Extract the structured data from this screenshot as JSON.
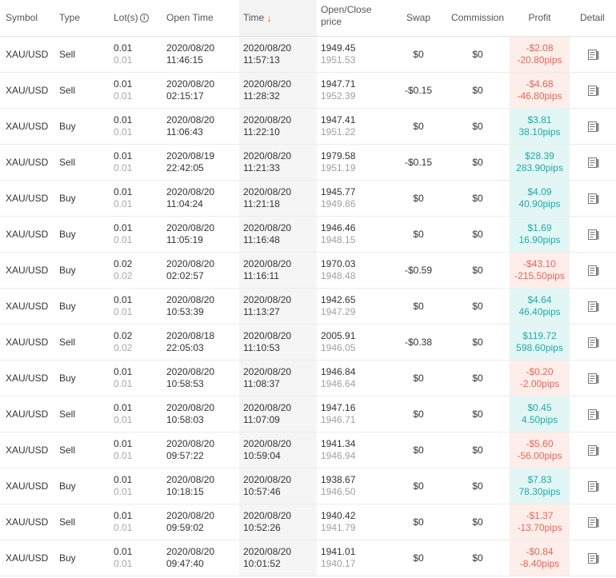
{
  "header": {
    "symbol": "Symbol",
    "type": "Type",
    "lots": "Lot(s)",
    "open_time": "Open Time",
    "time": "Time",
    "price_line1": "Open/Close",
    "price_line2": "price",
    "swap": "Swap",
    "commission": "Commission",
    "profit": "Profit",
    "detail": "Detail"
  },
  "colors": {
    "profit_negative": "#e8685a",
    "profit_positive": "#22aaa4",
    "sort_arrow": "#f07a2c"
  },
  "icons": {
    "lots_info": "info-circle-icon",
    "sort": "arrow-down-icon",
    "detail": "document-icon"
  },
  "rows": [
    {
      "symbol": "XAU/USD",
      "type": "Sell",
      "lots_open": "0.01",
      "lots_close": "0.01",
      "open_date": "2020/08/20",
      "open_clock": "11:46:15",
      "close_date": "2020/08/20",
      "close_clock": "11:57:13",
      "open_price": "1949.45",
      "close_price": "1951.53",
      "swap": "$0",
      "commission": "$0",
      "profit": "-$2.08",
      "pips": "-20.80pips",
      "profit_sign": "neg"
    },
    {
      "symbol": "XAU/USD",
      "type": "Sell",
      "lots_open": "0.01",
      "lots_close": "0.01",
      "open_date": "2020/08/20",
      "open_clock": "02:15:17",
      "close_date": "2020/08/20",
      "close_clock": "11:28:32",
      "open_price": "1947.71",
      "close_price": "1952.39",
      "swap": "-$0.15",
      "commission": "$0",
      "profit": "-$4.68",
      "pips": "-46.80pips",
      "profit_sign": "neg"
    },
    {
      "symbol": "XAU/USD",
      "type": "Buy",
      "lots_open": "0.01",
      "lots_close": "0.01",
      "open_date": "2020/08/20",
      "open_clock": "11:06:43",
      "close_date": "2020/08/20",
      "close_clock": "11:22:10",
      "open_price": "1947.41",
      "close_price": "1951.22",
      "swap": "$0",
      "commission": "$0",
      "profit": "$3.81",
      "pips": "38.10pips",
      "profit_sign": "pos"
    },
    {
      "symbol": "XAU/USD",
      "type": "Sell",
      "lots_open": "0.01",
      "lots_close": "0.01",
      "open_date": "2020/08/19",
      "open_clock": "22:42:05",
      "close_date": "2020/08/20",
      "close_clock": "11:21:33",
      "open_price": "1979.58",
      "close_price": "1951.19",
      "swap": "-$0.15",
      "commission": "$0",
      "profit": "$28.39",
      "pips": "283.90pips",
      "profit_sign": "pos"
    },
    {
      "symbol": "XAU/USD",
      "type": "Buy",
      "lots_open": "0.01",
      "lots_close": "0.01",
      "open_date": "2020/08/20",
      "open_clock": "11:04:24",
      "close_date": "2020/08/20",
      "close_clock": "11:21:18",
      "open_price": "1945.77",
      "close_price": "1949.86",
      "swap": "$0",
      "commission": "$0",
      "profit": "$4.09",
      "pips": "40.90pips",
      "profit_sign": "pos"
    },
    {
      "symbol": "XAU/USD",
      "type": "Buy",
      "lots_open": "0.01",
      "lots_close": "0.01",
      "open_date": "2020/08/20",
      "open_clock": "11:05:19",
      "close_date": "2020/08/20",
      "close_clock": "11:16:48",
      "open_price": "1946.46",
      "close_price": "1948.15",
      "swap": "$0",
      "commission": "$0",
      "profit": "$1.69",
      "pips": "16.90pips",
      "profit_sign": "pos"
    },
    {
      "symbol": "XAU/USD",
      "type": "Buy",
      "lots_open": "0.02",
      "lots_close": "0.02",
      "open_date": "2020/08/20",
      "open_clock": "02:02:57",
      "close_date": "2020/08/20",
      "close_clock": "11:16:11",
      "open_price": "1970.03",
      "close_price": "1948.48",
      "swap": "-$0.59",
      "commission": "$0",
      "profit": "-$43.10",
      "pips": "-215.50pips",
      "profit_sign": "neg"
    },
    {
      "symbol": "XAU/USD",
      "type": "Buy",
      "lots_open": "0.01",
      "lots_close": "0.01",
      "open_date": "2020/08/20",
      "open_clock": "10:53:39",
      "close_date": "2020/08/20",
      "close_clock": "11:13:27",
      "open_price": "1942.65",
      "close_price": "1947.29",
      "swap": "$0",
      "commission": "$0",
      "profit": "$4.64",
      "pips": "46.40pips",
      "profit_sign": "pos"
    },
    {
      "symbol": "XAU/USD",
      "type": "Sell",
      "lots_open": "0.02",
      "lots_close": "0.02",
      "open_date": "2020/08/18",
      "open_clock": "22:05:03",
      "close_date": "2020/08/20",
      "close_clock": "11:10:53",
      "open_price": "2005.91",
      "close_price": "1946.05",
      "swap": "-$0.38",
      "commission": "$0",
      "profit": "$119.72",
      "pips": "598.60pips",
      "profit_sign": "pos"
    },
    {
      "symbol": "XAU/USD",
      "type": "Buy",
      "lots_open": "0.01",
      "lots_close": "0.01",
      "open_date": "2020/08/20",
      "open_clock": "10:58:53",
      "close_date": "2020/08/20",
      "close_clock": "11:08:37",
      "open_price": "1946.84",
      "close_price": "1946.64",
      "swap": "$0",
      "commission": "$0",
      "profit": "-$0.20",
      "pips": "-2.00pips",
      "profit_sign": "neg"
    },
    {
      "symbol": "XAU/USD",
      "type": "Sell",
      "lots_open": "0.01",
      "lots_close": "0.01",
      "open_date": "2020/08/20",
      "open_clock": "10:58:03",
      "close_date": "2020/08/20",
      "close_clock": "11:07:09",
      "open_price": "1947.16",
      "close_price": "1946.71",
      "swap": "$0",
      "commission": "$0",
      "profit": "$0.45",
      "pips": "4.50pips",
      "profit_sign": "pos"
    },
    {
      "symbol": "XAU/USD",
      "type": "Sell",
      "lots_open": "0.01",
      "lots_close": "0.01",
      "open_date": "2020/08/20",
      "open_clock": "09:57:22",
      "close_date": "2020/08/20",
      "close_clock": "10:59:04",
      "open_price": "1941.34",
      "close_price": "1946.94",
      "swap": "$0",
      "commission": "$0",
      "profit": "-$5.60",
      "pips": "-56.00pips",
      "profit_sign": "neg"
    },
    {
      "symbol": "XAU/USD",
      "type": "Buy",
      "lots_open": "0.01",
      "lots_close": "0.01",
      "open_date": "2020/08/20",
      "open_clock": "10:18:15",
      "close_date": "2020/08/20",
      "close_clock": "10:57:46",
      "open_price": "1938.67",
      "close_price": "1946.50",
      "swap": "$0",
      "commission": "$0",
      "profit": "$7.83",
      "pips": "78.30pips",
      "profit_sign": "pos"
    },
    {
      "symbol": "XAU/USD",
      "type": "Sell",
      "lots_open": "0.01",
      "lots_close": "0.01",
      "open_date": "2020/08/20",
      "open_clock": "09:59:02",
      "close_date": "2020/08/20",
      "close_clock": "10:52:26",
      "open_price": "1940.42",
      "close_price": "1941.79",
      "swap": "$0",
      "commission": "$0",
      "profit": "-$1.37",
      "pips": "-13.70pips",
      "profit_sign": "neg"
    },
    {
      "symbol": "XAU/USD",
      "type": "Buy",
      "lots_open": "0.01",
      "lots_close": "0.01",
      "open_date": "2020/08/20",
      "open_clock": "09:47:40",
      "close_date": "2020/08/20",
      "close_clock": "10:01:52",
      "open_price": "1941.01",
      "close_price": "1940.17",
      "swap": "$0",
      "commission": "$0",
      "profit": "-$0.84",
      "pips": "-8.40pips",
      "profit_sign": "neg"
    }
  ]
}
